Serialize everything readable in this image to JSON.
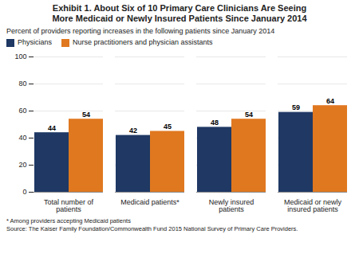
{
  "chart_data": {
    "type": "bar",
    "title": "Exhibit 1. About Six of 10 Primary Care Clinicians Are Seeing\nMore Medicaid or Newly Insured Patients Since January 2014",
    "subtitle": "Percent of providers reporting increases in the following patients since January 2014",
    "categories": [
      "Total number of\npatients",
      "Medicaid patients*",
      "Newly insured\npatients",
      "Medicaid or newly\ninsured patients"
    ],
    "series": [
      {
        "name": "Physicians",
        "color": "#1F3864",
        "values": [
          44,
          42,
          48,
          59
        ]
      },
      {
        "name": "Nurse practitioners and physician assistants",
        "color": "#E07820",
        "values": [
          54,
          45,
          54,
          64
        ]
      }
    ],
    "ylim": [
      0,
      100
    ],
    "yticks": [
      0,
      20,
      40,
      60,
      80,
      100
    ],
    "grid": true,
    "legend": "upper left",
    "data_labels": true,
    "annotations": [
      "* Among providers accepting Medicaid patients",
      "Source: The Kaiser Family Foundation/Commonwealth Fund 2015 National Survey of Primary Care Providers."
    ]
  }
}
